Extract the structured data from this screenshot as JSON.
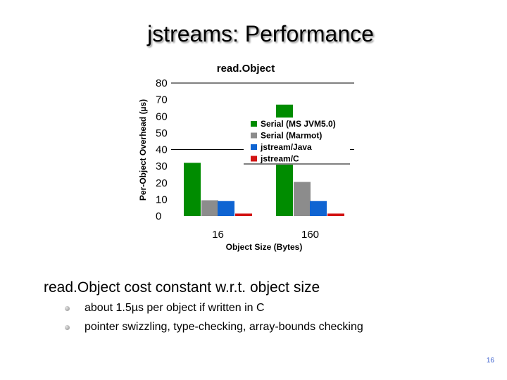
{
  "slide": {
    "title": "jstreams: Performance",
    "bullet": "read.Object cost constant w.r.t. object size",
    "sub_bullets": [
      "about 1.5µs per object if written in C",
      "pointer swizzling, type-checking, array-bounds checking"
    ],
    "page_number": "16"
  },
  "chart_data": {
    "type": "bar",
    "title": "read.Object",
    "xlabel": "Object Size (Bytes)",
    "ylabel": "Per-Object Overhead (µs)",
    "categories": [
      "16",
      "160"
    ],
    "ylim": [
      0,
      80
    ],
    "yticks": [
      0,
      10,
      20,
      30,
      40,
      50,
      60,
      70,
      80
    ],
    "grid": "major y lines at 40 and 80",
    "legend_position": "right",
    "series": [
      {
        "name": "Serial (MS JVM5.0)",
        "color": "#008c00",
        "values": [
          32,
          67
        ]
      },
      {
        "name": "Serial (Marmot)",
        "color": "#8c8c8c",
        "values": [
          9.5,
          20.5
        ]
      },
      {
        "name": "jstream/Java",
        "color": "#0f64d2",
        "values": [
          9,
          9
        ]
      },
      {
        "name": "jstream/C",
        "color": "#d21414",
        "values": [
          1.5,
          1.5
        ]
      }
    ]
  }
}
